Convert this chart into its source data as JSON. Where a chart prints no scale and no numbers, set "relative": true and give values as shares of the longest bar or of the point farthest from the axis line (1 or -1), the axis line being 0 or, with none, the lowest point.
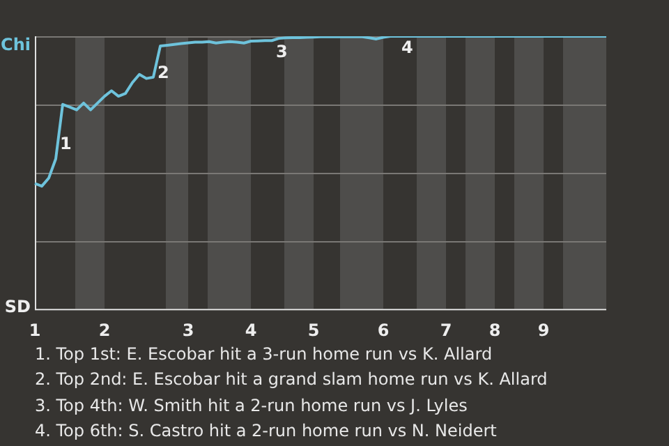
{
  "chart_data": {
    "type": "line",
    "relative": true,
    "categories": [
      "1",
      null,
      null,
      null,
      null,
      null,
      null,
      null,
      null,
      null,
      "2",
      null,
      null,
      null,
      null,
      null,
      null,
      null,
      null,
      null,
      null,
      null,
      "3",
      null,
      null,
      null,
      null,
      null,
      null,
      null,
      null,
      "4",
      null,
      null,
      null,
      null,
      null,
      null,
      null,
      null,
      "5",
      null,
      null,
      null,
      null,
      null,
      null,
      null,
      null,
      null,
      "6",
      null,
      null,
      null,
      null,
      null,
      null,
      null,
      null,
      "7",
      null,
      null,
      null,
      null,
      null,
      null,
      "8",
      null,
      null,
      null,
      null,
      null,
      null,
      "9",
      null,
      null,
      null,
      null,
      null,
      null,
      null,
      null,
      null
    ],
    "series": [
      {
        "color": "#6ec3dc",
        "values": [
          0.46,
          0.45,
          0.48,
          0.55,
          0.75,
          0.74,
          0.73,
          0.755,
          0.73,
          0.755,
          0.78,
          0.8,
          0.78,
          0.79,
          0.83,
          0.86,
          0.845,
          0.85,
          0.964,
          0.967,
          0.97,
          0.973,
          0.976,
          0.978,
          0.978,
          0.98,
          0.975,
          0.978,
          0.98,
          0.978,
          0.975,
          0.982,
          0.983,
          0.984,
          0.984,
          0.992,
          0.994,
          0.995,
          0.995,
          0.996,
          0.997,
          0.998,
          0.998,
          0.998,
          0.998,
          0.998,
          0.998,
          0.998,
          0.994,
          0.99,
          0.996,
          1,
          1,
          1,
          1,
          1,
          1,
          1,
          1,
          1,
          1,
          1,
          1,
          1,
          1,
          1,
          1,
          1,
          1,
          1,
          1,
          1,
          1,
          1,
          1,
          1,
          1,
          1,
          1,
          1,
          1,
          1,
          1
        ]
      }
    ],
    "ref_lines": [
      {
        "axis": "y",
        "value": 0.25,
        "color": "#7a7875"
      },
      {
        "axis": "y",
        "value": 0.5,
        "color": "#7a7875"
      },
      {
        "axis": "y",
        "value": 0.75,
        "color": "#7a7875"
      },
      {
        "axis": "y",
        "value": 1,
        "color": "#7a7875"
      }
    ],
    "annotations": [
      "Chi",
      "SD",
      "1",
      "2",
      "3",
      "4",
      "1. Top 1st: E. Escobar hit a 3-run home run vs K. Allard",
      "2. Top 2nd: E. Escobar hit a grand slam home run vs K. Allard",
      "3. Top 4th: W. Smith hit a 2-run home run vs J. Lyles",
      "4. Top 6th: S. Castro hit a 2-run home run vs N. Neidert"
    ],
    "marker": "none",
    "line_style": "solid"
  }
}
